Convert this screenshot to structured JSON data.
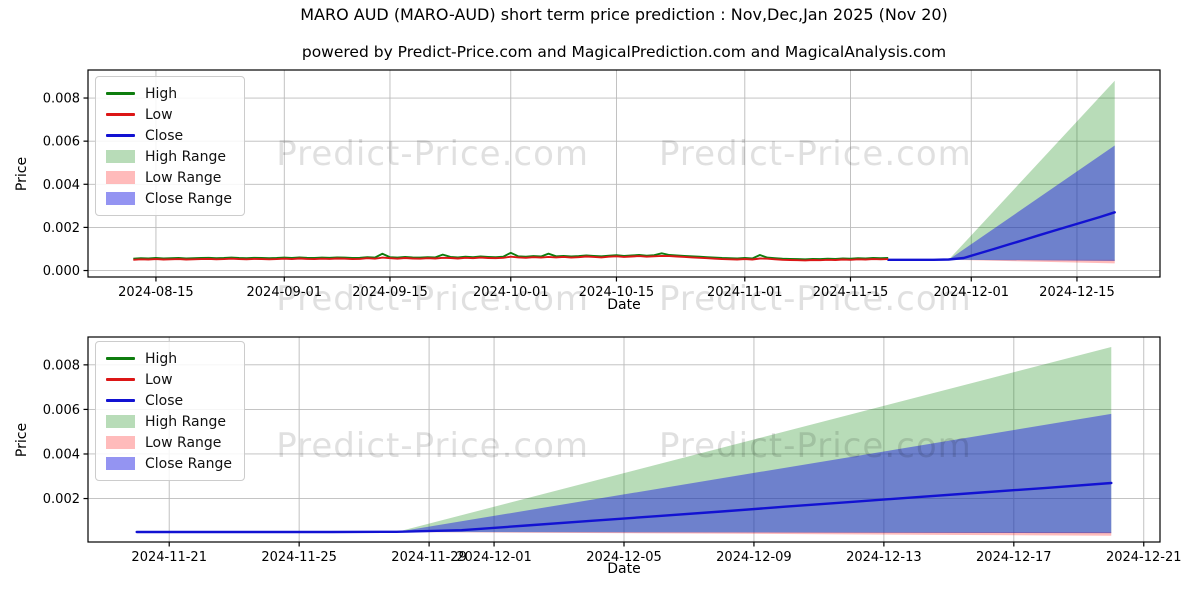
{
  "header": {
    "title": "MARO AUD (MARO-AUD) short term price prediction : Nov,Dec,Jan 2025 (Nov 20)",
    "subtitle": "powered by Predict-Price.com and MagicalPrediction.com and MagicalAnalysis.com"
  },
  "watermark": {
    "text": "Predict-Price.com",
    "color": "#0000001F"
  },
  "colors": {
    "high_line": "#0E7D0E",
    "low_line": "#DC1616",
    "close_line": "#1212D2",
    "high_range_fill": "#00800047",
    "low_range_fill": "#FF1E1E4D",
    "close_range_fill": "#1C1CE478",
    "grid": "#BBBBBB",
    "spine": "#000000",
    "tick_text": "#000000"
  },
  "legend": {
    "position": "upper left",
    "items": [
      {
        "label": "High",
        "swatch": "line",
        "color_key": "high_line"
      },
      {
        "label": "Low",
        "swatch": "line",
        "color_key": "low_line"
      },
      {
        "label": "Close",
        "swatch": "line",
        "color_key": "close_line"
      },
      {
        "label": "High Range",
        "swatch": "fill",
        "color_key": "high_range_fill"
      },
      {
        "label": "Low Range",
        "swatch": "fill",
        "color_key": "low_range_fill"
      },
      {
        "label": "Close Range",
        "swatch": "fill",
        "color_key": "close_range_fill"
      }
    ]
  },
  "chart_data": [
    {
      "type": "line",
      "name": "full-history-and-prediction",
      "xlabel": "Date",
      "ylabel": "Price",
      "grid": true,
      "xlim": [
        "2024-08-06T00:00:00",
        "2024-12-26T00:00:00"
      ],
      "ylim": [
        -0.0003,
        0.0093
      ],
      "x_ticks": [
        "2024-08-15",
        "2024-09-01",
        "2024-09-15",
        "2024-10-01",
        "2024-10-15",
        "2024-11-01",
        "2024-11-15",
        "2024-12-01",
        "2024-12-15"
      ],
      "y_ticks": [
        {
          "value": 0.0,
          "label": "0.000"
        },
        {
          "value": 0.002,
          "label": "0.002"
        },
        {
          "value": 0.004,
          "label": "0.004"
        },
        {
          "value": 0.006,
          "label": "0.006"
        },
        {
          "value": 0.008,
          "label": "0.008"
        }
      ],
      "value_scale": 1e-05,
      "history": {
        "start_date": "2024-08-12",
        "step_days": 1,
        "high": [
          55,
          57,
          56,
          58,
          56,
          57,
          58,
          56,
          57,
          58,
          59,
          57,
          58,
          60,
          58,
          57,
          59,
          58,
          57,
          58,
          60,
          58,
          61,
          59,
          58,
          60,
          59,
          61,
          60,
          58,
          59,
          62,
          60,
          78,
          62,
          60,
          63,
          61,
          60,
          62,
          61,
          74,
          63,
          61,
          64,
          62,
          65,
          63,
          62,
          64,
          82,
          66,
          64,
          67,
          65,
          78,
          66,
          68,
          65,
          67,
          70,
          68,
          66,
          69,
          71,
          68,
          70,
          72,
          69,
          71,
          80,
          72,
          70,
          68,
          66,
          64,
          62,
          60,
          58,
          57,
          56,
          58,
          56,
          72,
          60,
          57,
          55,
          54,
          53,
          52,
          54,
          53,
          55,
          54,
          56,
          55,
          57,
          56,
          58,
          57,
          58
        ],
        "low": [
          50,
          52,
          51,
          53,
          51,
          52,
          53,
          51,
          52,
          53,
          54,
          52,
          53,
          55,
          53,
          52,
          54,
          53,
          52,
          53,
          55,
          53,
          56,
          54,
          53,
          55,
          54,
          56,
          55,
          53,
          54,
          57,
          55,
          60,
          57,
          55,
          58,
          56,
          55,
          57,
          56,
          59,
          58,
          56,
          59,
          57,
          60,
          58,
          57,
          59,
          64,
          61,
          59,
          62,
          60,
          63,
          61,
          63,
          60,
          62,
          65,
          63,
          61,
          64,
          66,
          63,
          65,
          67,
          64,
          66,
          68,
          67,
          65,
          63,
          61,
          59,
          57,
          55,
          53,
          52,
          51,
          53,
          51,
          56,
          55,
          52,
          50,
          49,
          48,
          47,
          49,
          48,
          50,
          49,
          51,
          50,
          52,
          51,
          53,
          52,
          53
        ]
      },
      "prediction": {
        "close_dates": [
          "2024-11-20",
          "2024-11-22",
          "2024-11-24",
          "2024-11-26",
          "2024-11-28",
          "2024-11-30",
          "2024-12-02",
          "2024-12-04",
          "2024-12-06",
          "2024-12-08",
          "2024-12-10",
          "2024-12-12",
          "2024-12-14",
          "2024-12-16",
          "2024-12-18",
          "2024-12-20"
        ],
        "close": [
          50,
          50,
          50,
          50,
          51,
          58,
          79,
          100,
          121,
          142,
          164,
          185,
          206,
          227,
          248,
          270
        ],
        "fan_start_date": "2024-11-28",
        "fan_end_date": "2024-12-20",
        "ranges": [
          {
            "name": "High Range",
            "top_start": 50,
            "top_end": 880,
            "bottom_start": 50,
            "bottom_end": 45,
            "color_key": "high_range_fill"
          },
          {
            "name": "Low Range",
            "top_start": 50,
            "top_end": 50,
            "bottom_start": 50,
            "bottom_end": 33,
            "color_key": "low_range_fill"
          },
          {
            "name": "Close Range",
            "top_start": 50,
            "top_end": 580,
            "bottom_start": 50,
            "bottom_end": 45,
            "color_key": "close_range_fill"
          }
        ]
      }
    },
    {
      "type": "line",
      "name": "prediction-zoom",
      "xlabel": "Date",
      "ylabel": "Price",
      "grid": true,
      "xlim": [
        "2024-11-18T12:00:00",
        "2024-12-21T12:00:00"
      ],
      "ylim": [
        5e-05,
        0.00925
      ],
      "x_ticks": [
        "2024-11-21",
        "2024-11-25",
        "2024-11-29",
        "2024-12-01",
        "2024-12-05",
        "2024-12-09",
        "2024-12-13",
        "2024-12-17",
        "2024-12-21"
      ],
      "y_ticks": [
        {
          "value": 0.002,
          "label": "0.002"
        },
        {
          "value": 0.004,
          "label": "0.004"
        },
        {
          "value": 0.006,
          "label": "0.006"
        },
        {
          "value": 0.008,
          "label": "0.008"
        }
      ],
      "value_scale": 1e-05,
      "history": null,
      "prediction": {
        "close_dates": [
          "2024-11-20",
          "2024-11-22",
          "2024-11-24",
          "2024-11-26",
          "2024-11-28",
          "2024-11-30",
          "2024-12-02",
          "2024-12-04",
          "2024-12-06",
          "2024-12-08",
          "2024-12-10",
          "2024-12-12",
          "2024-12-14",
          "2024-12-16",
          "2024-12-18",
          "2024-12-20"
        ],
        "close": [
          50,
          50,
          50,
          50,
          51,
          58,
          79,
          100,
          121,
          142,
          164,
          185,
          206,
          227,
          248,
          270
        ],
        "fan_start_date": "2024-11-28",
        "fan_end_date": "2024-12-20",
        "ranges": [
          {
            "name": "High Range",
            "top_start": 50,
            "top_end": 880,
            "bottom_start": 50,
            "bottom_end": 45,
            "color_key": "high_range_fill"
          },
          {
            "name": "Low Range",
            "top_start": 50,
            "top_end": 50,
            "bottom_start": 50,
            "bottom_end": 33,
            "color_key": "low_range_fill"
          },
          {
            "name": "Close Range",
            "top_start": 50,
            "top_end": 580,
            "bottom_start": 50,
            "bottom_end": 45,
            "color_key": "close_range_fill"
          }
        ]
      }
    }
  ]
}
